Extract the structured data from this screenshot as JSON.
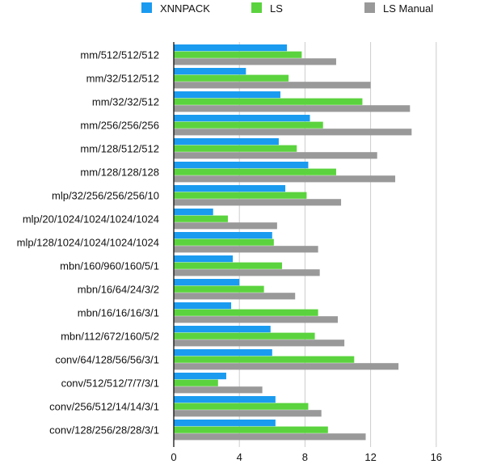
{
  "chart_data": {
    "type": "bar",
    "orientation": "horizontal",
    "title": "",
    "xlabel": "",
    "ylabel": "",
    "xlim": [
      0,
      16
    ],
    "xticks": [
      0,
      4,
      8,
      12,
      16
    ],
    "grid": true,
    "legend_position": "top",
    "categories": [
      "mm/512/512/512",
      "mm/32/512/512",
      "mm/32/32/512",
      "mm/256/256/256",
      "mm/128/512/512",
      "mm/128/128/128",
      "mlp/32/256/256/256/10",
      "mlp/20/1024/1024/1024/1024",
      "mlp/128/1024/1024/1024/1024",
      "mbn/160/960/160/5/1",
      "mbn/16/64/24/3/2",
      "mbn/16/16/16/3/1",
      "mbn/112/672/160/5/2",
      "conv/64/128/56/56/3/1",
      "conv/512/512/7/7/3/1",
      "conv/256/512/14/14/3/1",
      "conv/128/256/28/28/3/1"
    ],
    "series": [
      {
        "name": "XNNPACK",
        "color": "#1A9BF0",
        "values": [
          6.9,
          4.4,
          6.5,
          8.3,
          6.4,
          8.2,
          6.8,
          2.4,
          6.0,
          3.6,
          4.0,
          3.5,
          5.9,
          6.0,
          3.2,
          6.2,
          6.2
        ]
      },
      {
        "name": "LS",
        "color": "#5BD33E",
        "values": [
          7.8,
          7.0,
          11.5,
          9.1,
          7.5,
          9.9,
          8.1,
          3.3,
          6.1,
          6.6,
          5.5,
          8.8,
          8.6,
          11.0,
          2.7,
          8.2,
          9.4
        ]
      },
      {
        "name": "LS Manual",
        "color": "#999999",
        "values": [
          9.9,
          12.0,
          14.4,
          14.5,
          12.4,
          13.5,
          10.2,
          6.3,
          8.8,
          8.9,
          7.4,
          10.0,
          10.4,
          13.7,
          5.4,
          9.0,
          11.7
        ]
      }
    ]
  }
}
